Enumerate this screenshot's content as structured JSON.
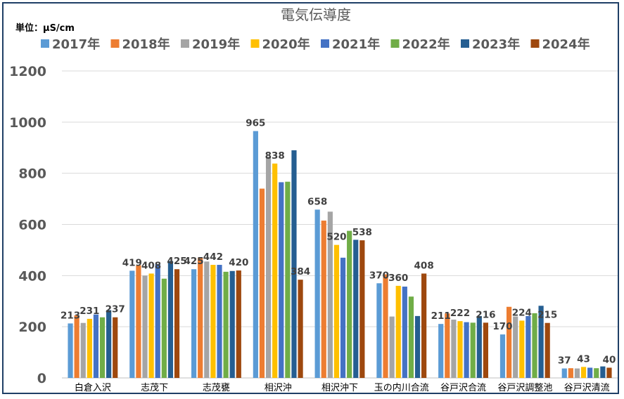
{
  "chart_data": {
    "type": "bar",
    "title": "電気伝導度",
    "unit_label": "単位：μS/cm",
    "ylim": [
      0,
      1200
    ],
    "yticks": [
      "0",
      "200",
      "400",
      "600",
      "800",
      "1000",
      "1200"
    ],
    "grid": true,
    "legend_position": "top",
    "categories": [
      "白倉入沢",
      "志茂下",
      "志茂甕",
      "相沢沖",
      "相沢沖下",
      "玉の内川合流",
      "谷戸沢合流",
      "谷戸沢調整池",
      "谷戸沢清流"
    ],
    "series": [
      {
        "name": "2017年",
        "color": "#5b9bd5",
        "values": [
          213,
          419,
          425,
          965,
          658,
          370,
          211,
          170,
          37
        ]
      },
      {
        "name": "2018年",
        "color": "#ed7d31",
        "values": [
          245,
          440,
          470,
          740,
          615,
          405,
          252,
          278,
          38
        ]
      },
      {
        "name": "2019年",
        "color": "#a5a5a5",
        "values": [
          215,
          400,
          455,
          865,
          650,
          240,
          228,
          240,
          37
        ]
      },
      {
        "name": "2020年",
        "color": "#ffc000",
        "values": [
          231,
          408,
          442,
          838,
          520,
          360,
          222,
          224,
          43
        ]
      },
      {
        "name": "2021年",
        "color": "#4472c4",
        "values": [
          248,
          445,
          442,
          765,
          470,
          357,
          218,
          242,
          40
        ]
      },
      {
        "name": "2022年",
        "color": "#70ad47",
        "values": [
          237,
          388,
          415,
          767,
          575,
          318,
          216,
          253,
          38
        ]
      },
      {
        "name": "2023年",
        "color": "#255e91",
        "values": [
          265,
          457,
          418,
          890,
          540,
          242,
          242,
          282,
          45
        ]
      },
      {
        "name": "2024年",
        "color": "#9e480e",
        "values": [
          237,
          425,
          420,
          384,
          538,
          408,
          216,
          215,
          40
        ]
      }
    ],
    "data_labels": [
      {
        "category": 0,
        "series": 0,
        "text": "213"
      },
      {
        "category": 0,
        "series": 3,
        "text": "231"
      },
      {
        "category": 0,
        "series": 7,
        "text": "237"
      },
      {
        "category": 1,
        "series": 0,
        "text": "419"
      },
      {
        "category": 1,
        "series": 3,
        "text": "408"
      },
      {
        "category": 1,
        "series": 7,
        "text": "425"
      },
      {
        "category": 2,
        "series": 0,
        "text": "425"
      },
      {
        "category": 2,
        "series": 3,
        "text": "442"
      },
      {
        "category": 2,
        "series": 7,
        "text": "420"
      },
      {
        "category": 3,
        "series": 0,
        "text": "965"
      },
      {
        "category": 3,
        "series": 3,
        "text": "838"
      },
      {
        "category": 3,
        "series": 7,
        "text": "384"
      },
      {
        "category": 4,
        "series": 0,
        "text": "658"
      },
      {
        "category": 4,
        "series": 3,
        "text": "520"
      },
      {
        "category": 4,
        "series": 7,
        "text": "538"
      },
      {
        "category": 5,
        "series": 0,
        "text": "370"
      },
      {
        "category": 5,
        "series": 3,
        "text": "360"
      },
      {
        "category": 5,
        "series": 7,
        "text": "408"
      },
      {
        "category": 6,
        "series": 0,
        "text": "211"
      },
      {
        "category": 6,
        "series": 3,
        "text": "222"
      },
      {
        "category": 6,
        "series": 7,
        "text": "216"
      },
      {
        "category": 7,
        "series": 0,
        "text": "170"
      },
      {
        "category": 7,
        "series": 3,
        "text": "224"
      },
      {
        "category": 7,
        "series": 7,
        "text": "215"
      },
      {
        "category": 8,
        "series": 0,
        "text": "37"
      },
      {
        "category": 8,
        "series": 3,
        "text": "43"
      },
      {
        "category": 8,
        "series": 7,
        "text": "40"
      }
    ]
  }
}
